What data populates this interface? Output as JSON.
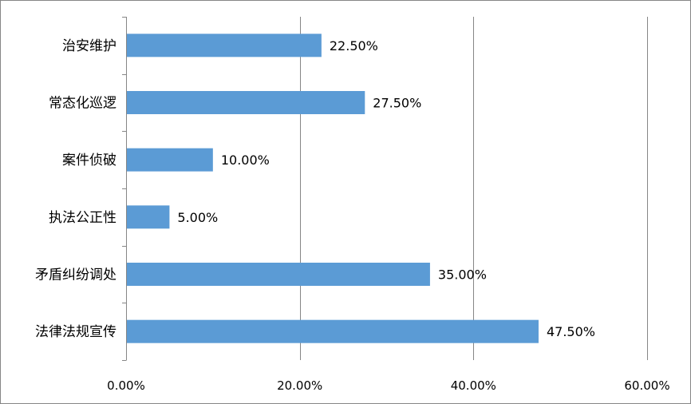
{
  "chart_data": {
    "type": "bar",
    "orientation": "horizontal",
    "categories": [
      "治安维护",
      "常态化巡逻",
      "案件侦破",
      "执法公正性",
      "矛盾纠纷调处",
      "法律法规宣传"
    ],
    "values": [
      22.5,
      27.5,
      10.0,
      5.0,
      35.0,
      47.5
    ],
    "value_labels": [
      "22.50%",
      "27.50%",
      "10.00%",
      "5.00%",
      "35.00%",
      "47.50%"
    ],
    "x_ticks": [
      0,
      20,
      40,
      60
    ],
    "x_tick_labels": [
      "0.00%",
      "20.00%",
      "40.00%",
      "60.00%"
    ],
    "xlim": [
      0,
      60
    ],
    "grid": "vertical",
    "legend": "none",
    "bar_color": "#5B9BD5",
    "title": "",
    "xlabel": "",
    "ylabel": ""
  }
}
